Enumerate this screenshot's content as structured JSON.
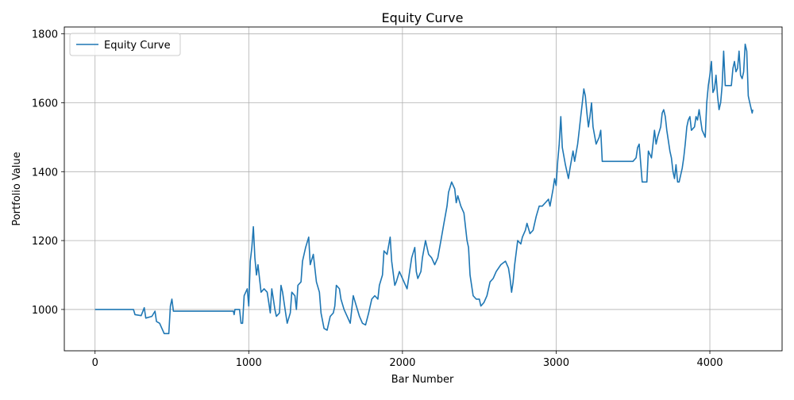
{
  "chart_data": {
    "type": "line",
    "title": "Equity Curve",
    "xlabel": "Bar Number",
    "ylabel": "Portfolio Value",
    "xlim": [
      -200,
      4470
    ],
    "ylim": [
      880,
      1820
    ],
    "xticks": [
      0,
      1000,
      2000,
      3000,
      4000
    ],
    "yticks": [
      1000,
      1200,
      1400,
      1600,
      1800
    ],
    "grid": true,
    "legend": {
      "placement": "upper-left",
      "entries": [
        "Equity Curve"
      ]
    },
    "series": [
      {
        "name": "Equity Curve",
        "color": "#1f77b4",
        "points": [
          [
            0,
            1000
          ],
          [
            250,
            1000
          ],
          [
            260,
            985
          ],
          [
            300,
            982
          ],
          [
            320,
            1005
          ],
          [
            330,
            975
          ],
          [
            370,
            980
          ],
          [
            390,
            995
          ],
          [
            400,
            965
          ],
          [
            420,
            960
          ],
          [
            450,
            930
          ],
          [
            480,
            930
          ],
          [
            490,
            1010
          ],
          [
            500,
            1030
          ],
          [
            510,
            995
          ],
          [
            600,
            995
          ],
          [
            800,
            995
          ],
          [
            900,
            995
          ],
          [
            905,
            985
          ],
          [
            910,
            1000
          ],
          [
            940,
            1000
          ],
          [
            950,
            960
          ],
          [
            960,
            960
          ],
          [
            970,
            1040
          ],
          [
            990,
            1060
          ],
          [
            1000,
            1010
          ],
          [
            1010,
            1140
          ],
          [
            1020,
            1180
          ],
          [
            1030,
            1240
          ],
          [
            1040,
            1150
          ],
          [
            1050,
            1100
          ],
          [
            1060,
            1130
          ],
          [
            1080,
            1050
          ],
          [
            1100,
            1060
          ],
          [
            1120,
            1050
          ],
          [
            1130,
            1020
          ],
          [
            1140,
            990
          ],
          [
            1150,
            1060
          ],
          [
            1160,
            1030
          ],
          [
            1170,
            1000
          ],
          [
            1180,
            980
          ],
          [
            1200,
            990
          ],
          [
            1210,
            1070
          ],
          [
            1220,
            1050
          ],
          [
            1240,
            990
          ],
          [
            1250,
            960
          ],
          [
            1270,
            990
          ],
          [
            1280,
            1050
          ],
          [
            1300,
            1040
          ],
          [
            1310,
            1000
          ],
          [
            1320,
            1070
          ],
          [
            1340,
            1080
          ],
          [
            1350,
            1140
          ],
          [
            1370,
            1180
          ],
          [
            1390,
            1210
          ],
          [
            1400,
            1130
          ],
          [
            1420,
            1160
          ],
          [
            1440,
            1080
          ],
          [
            1460,
            1050
          ],
          [
            1470,
            990
          ],
          [
            1490,
            945
          ],
          [
            1510,
            940
          ],
          [
            1530,
            980
          ],
          [
            1550,
            990
          ],
          [
            1560,
            1010
          ],
          [
            1570,
            1070
          ],
          [
            1590,
            1060
          ],
          [
            1600,
            1030
          ],
          [
            1620,
            1000
          ],
          [
            1640,
            980
          ],
          [
            1660,
            960
          ],
          [
            1680,
            1040
          ],
          [
            1700,
            1010
          ],
          [
            1720,
            980
          ],
          [
            1740,
            960
          ],
          [
            1760,
            955
          ],
          [
            1780,
            990
          ],
          [
            1800,
            1030
          ],
          [
            1820,
            1040
          ],
          [
            1840,
            1030
          ],
          [
            1850,
            1070
          ],
          [
            1870,
            1100
          ],
          [
            1880,
            1170
          ],
          [
            1900,
            1160
          ],
          [
            1920,
            1210
          ],
          [
            1930,
            1140
          ],
          [
            1950,
            1070
          ],
          [
            1960,
            1080
          ],
          [
            1980,
            1110
          ],
          [
            2000,
            1090
          ],
          [
            2010,
            1080
          ],
          [
            2030,
            1060
          ],
          [
            2060,
            1150
          ],
          [
            2080,
            1180
          ],
          [
            2090,
            1110
          ],
          [
            2100,
            1090
          ],
          [
            2120,
            1110
          ],
          [
            2130,
            1150
          ],
          [
            2150,
            1200
          ],
          [
            2170,
            1160
          ],
          [
            2190,
            1150
          ],
          [
            2210,
            1130
          ],
          [
            2230,
            1150
          ],
          [
            2250,
            1200
          ],
          [
            2270,
            1250
          ],
          [
            2290,
            1300
          ],
          [
            2300,
            1340
          ],
          [
            2320,
            1370
          ],
          [
            2340,
            1350
          ],
          [
            2350,
            1310
          ],
          [
            2360,
            1330
          ],
          [
            2380,
            1300
          ],
          [
            2400,
            1280
          ],
          [
            2420,
            1200
          ],
          [
            2430,
            1180
          ],
          [
            2440,
            1100
          ],
          [
            2460,
            1040
          ],
          [
            2480,
            1030
          ],
          [
            2500,
            1030
          ],
          [
            2510,
            1010
          ],
          [
            2530,
            1020
          ],
          [
            2550,
            1040
          ],
          [
            2570,
            1080
          ],
          [
            2590,
            1090
          ],
          [
            2610,
            1110
          ],
          [
            2640,
            1130
          ],
          [
            2670,
            1140
          ],
          [
            2690,
            1120
          ],
          [
            2700,
            1090
          ],
          [
            2710,
            1050
          ],
          [
            2720,
            1080
          ],
          [
            2730,
            1130
          ],
          [
            2750,
            1200
          ],
          [
            2770,
            1190
          ],
          [
            2780,
            1210
          ],
          [
            2800,
            1230
          ],
          [
            2810,
            1250
          ],
          [
            2830,
            1220
          ],
          [
            2850,
            1230
          ],
          [
            2870,
            1270
          ],
          [
            2890,
            1300
          ],
          [
            2910,
            1300
          ],
          [
            2930,
            1310
          ],
          [
            2950,
            1320
          ],
          [
            2960,
            1300
          ],
          [
            2980,
            1350
          ],
          [
            2990,
            1380
          ],
          [
            3000,
            1360
          ],
          [
            3010,
            1430
          ],
          [
            3020,
            1480
          ],
          [
            3030,
            1560
          ],
          [
            3040,
            1470
          ],
          [
            3060,
            1420
          ],
          [
            3080,
            1380
          ],
          [
            3090,
            1410
          ],
          [
            3110,
            1460
          ],
          [
            3120,
            1430
          ],
          [
            3140,
            1480
          ],
          [
            3150,
            1520
          ],
          [
            3160,
            1560
          ],
          [
            3170,
            1600
          ],
          [
            3180,
            1640
          ],
          [
            3190,
            1620
          ],
          [
            3200,
            1570
          ],
          [
            3210,
            1530
          ],
          [
            3220,
            1560
          ],
          [
            3230,
            1600
          ],
          [
            3240,
            1530
          ],
          [
            3260,
            1480
          ],
          [
            3280,
            1500
          ],
          [
            3290,
            1520
          ],
          [
            3300,
            1430
          ],
          [
            3400,
            1430
          ],
          [
            3500,
            1430
          ],
          [
            3520,
            1440
          ],
          [
            3530,
            1470
          ],
          [
            3540,
            1480
          ],
          [
            3560,
            1370
          ],
          [
            3590,
            1370
          ],
          [
            3600,
            1460
          ],
          [
            3620,
            1440
          ],
          [
            3640,
            1520
          ],
          [
            3650,
            1480
          ],
          [
            3660,
            1500
          ],
          [
            3680,
            1530
          ],
          [
            3690,
            1570
          ],
          [
            3700,
            1580
          ],
          [
            3710,
            1560
          ],
          [
            3720,
            1520
          ],
          [
            3740,
            1460
          ],
          [
            3750,
            1440
          ],
          [
            3760,
            1400
          ],
          [
            3770,
            1380
          ],
          [
            3780,
            1420
          ],
          [
            3790,
            1370
          ],
          [
            3800,
            1370
          ],
          [
            3820,
            1410
          ],
          [
            3830,
            1440
          ],
          [
            3840,
            1480
          ],
          [
            3850,
            1530
          ],
          [
            3860,
            1550
          ],
          [
            3870,
            1560
          ],
          [
            3880,
            1520
          ],
          [
            3900,
            1530
          ],
          [
            3910,
            1560
          ],
          [
            3920,
            1550
          ],
          [
            3930,
            1580
          ],
          [
            3940,
            1550
          ],
          [
            3950,
            1520
          ],
          [
            3960,
            1510
          ],
          [
            3970,
            1500
          ],
          [
            3980,
            1600
          ],
          [
            3990,
            1650
          ],
          [
            4000,
            1680
          ],
          [
            4010,
            1720
          ],
          [
            4020,
            1630
          ],
          [
            4030,
            1640
          ],
          [
            4040,
            1680
          ],
          [
            4050,
            1620
          ],
          [
            4060,
            1580
          ],
          [
            4070,
            1600
          ],
          [
            4080,
            1650
          ],
          [
            4090,
            1750
          ],
          [
            4100,
            1650
          ],
          [
            4120,
            1650
          ],
          [
            4140,
            1650
          ],
          [
            4150,
            1700
          ],
          [
            4160,
            1720
          ],
          [
            4170,
            1690
          ],
          [
            4180,
            1700
          ],
          [
            4190,
            1750
          ],
          [
            4200,
            1680
          ],
          [
            4210,
            1670
          ],
          [
            4220,
            1690
          ],
          [
            4230,
            1770
          ],
          [
            4240,
            1750
          ],
          [
            4250,
            1620
          ],
          [
            4260,
            1600
          ],
          [
            4270,
            1580
          ],
          [
            4275,
            1570
          ],
          [
            4280,
            1580
          ]
        ]
      }
    ]
  }
}
